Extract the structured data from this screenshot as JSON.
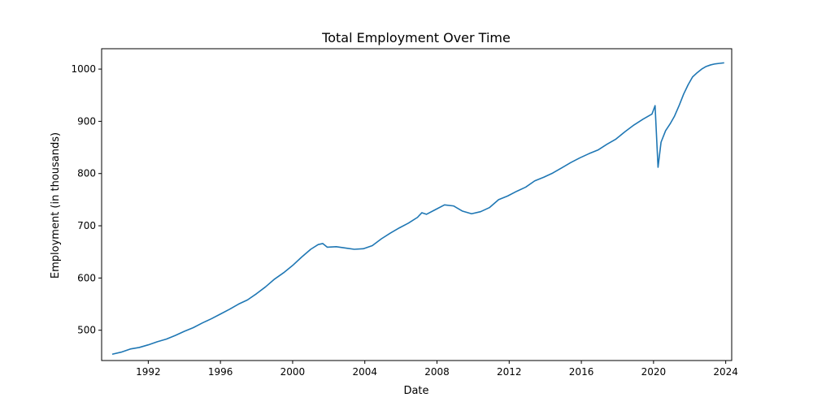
{
  "chart_data": {
    "type": "line",
    "title": "Total Employment Over Time",
    "xlabel": "Date",
    "ylabel": "Employment (in thousands)",
    "xlim": [
      "1989-06-01",
      "2024-05-01"
    ],
    "ylim": [
      442,
      1039
    ],
    "x_ticks": [
      "1992",
      "1996",
      "2000",
      "2004",
      "2008",
      "2012",
      "2016",
      "2020",
      "2024"
    ],
    "y_ticks": [
      500,
      600,
      700,
      800,
      900,
      1000
    ],
    "grid": false,
    "colors": {
      "line": "#1f77b4"
    },
    "series": [
      {
        "x": [
          "1990-01-01",
          "1990-07-01",
          "1991-01-01",
          "1991-07-01",
          "1992-01-01",
          "1992-07-01",
          "1993-01-01",
          "1993-07-01",
          "1994-01-01",
          "1994-07-01",
          "1995-01-01",
          "1995-07-01",
          "1996-01-01",
          "1996-07-01",
          "1997-01-01",
          "1997-07-01",
          "1998-01-01",
          "1998-07-01",
          "1999-01-01",
          "1999-07-01",
          "2000-01-01",
          "2000-07-01",
          "2001-01-01",
          "2001-06-01",
          "2001-09-01",
          "2001-12-01",
          "2002-06-01",
          "2003-01-01",
          "2003-06-01",
          "2003-12-01",
          "2004-06-01",
          "2004-12-01",
          "2005-06-01",
          "2005-12-01",
          "2006-06-01",
          "2006-12-01",
          "2007-03-01",
          "2007-06-01",
          "2007-12-01",
          "2008-06-01",
          "2008-12-01",
          "2009-06-01",
          "2009-12-01",
          "2010-06-01",
          "2010-12-01",
          "2011-06-01",
          "2011-12-01",
          "2012-06-01",
          "2012-12-01",
          "2013-06-01",
          "2013-12-01",
          "2014-06-01",
          "2014-12-01",
          "2015-06-01",
          "2015-12-01",
          "2016-06-01",
          "2016-12-01",
          "2017-06-01",
          "2017-12-01",
          "2018-06-01",
          "2018-12-01",
          "2019-06-01",
          "2019-12-01",
          "2020-02-01",
          "2020-04-01",
          "2020-06-01",
          "2020-09-01",
          "2020-12-01",
          "2021-03-01",
          "2021-06-01",
          "2021-09-01",
          "2021-12-01",
          "2022-03-01",
          "2022-06-01",
          "2022-09-01",
          "2022-12-01",
          "2023-03-01",
          "2023-06-01",
          "2023-09-01",
          "2023-12-01"
        ],
        "values": [
          454,
          458,
          464,
          467,
          472,
          478,
          483,
          490,
          498,
          505,
          514,
          522,
          531,
          540,
          550,
          558,
          570,
          583,
          598,
          610,
          624,
          640,
          655,
          664,
          666,
          659,
          660,
          657,
          655,
          656,
          662,
          675,
          686,
          696,
          705,
          716,
          725,
          722,
          731,
          740,
          738,
          728,
          723,
          727,
          735,
          750,
          757,
          766,
          774,
          786,
          793,
          801,
          811,
          821,
          830,
          838,
          845,
          856,
          866,
          880,
          893,
          904,
          914,
          930,
          812,
          860,
          882,
          895,
          910,
          930,
          952,
          970,
          985,
          993,
          1000,
          1005,
          1008,
          1010,
          1011,
          1012
        ]
      }
    ]
  }
}
